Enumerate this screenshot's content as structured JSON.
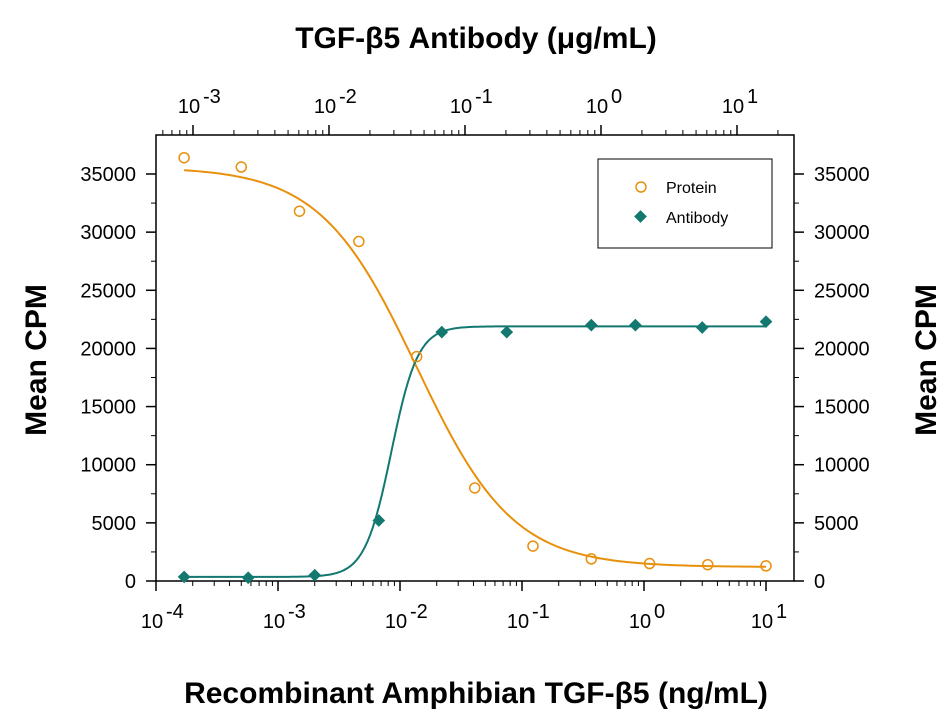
{
  "chart_data": {
    "type": "scatter",
    "title_top": "TGF-β5 Antibody (μg/mL)",
    "xlabel": "Recombinant Amphibian TGF-β5 (ng/mL)",
    "ylabel_left": "Mean CPM",
    "ylabel_right": "Mean CPM",
    "x_scale": "log",
    "x_bottom_ticks": [
      {
        "base": "10",
        "exp": "-4",
        "value": 0.0001
      },
      {
        "base": "10",
        "exp": "-3",
        "value": 0.001
      },
      {
        "base": "10",
        "exp": "-2",
        "value": 0.01
      },
      {
        "base": "10",
        "exp": "-1",
        "value": 0.1
      },
      {
        "base": "10",
        "exp": "0",
        "value": 1
      },
      {
        "base": "10",
        "exp": "1",
        "value": 10
      }
    ],
    "x_top_ticks": [
      {
        "base": "10",
        "exp": "-3",
        "value": 0.001
      },
      {
        "base": "10",
        "exp": "-2",
        "value": 0.01
      },
      {
        "base": "10",
        "exp": "-1",
        "value": 0.1
      },
      {
        "base": "10",
        "exp": "0",
        "value": 1
      },
      {
        "base": "10",
        "exp": "1",
        "value": 10
      }
    ],
    "y_ticks": [
      0,
      5000,
      10000,
      15000,
      20000,
      25000,
      30000,
      35000
    ],
    "ylim": [
      0,
      38000
    ],
    "legend_position": "top-right",
    "series": [
      {
        "name": "Protein",
        "color": "#E8900C",
        "marker": "open-circle",
        "points": [
          {
            "x": 0.00017,
            "y": 36400
          },
          {
            "x": 0.0005,
            "y": 35600
          },
          {
            "x": 0.0015,
            "y": 31800
          },
          {
            "x": 0.0046,
            "y": 29200
          },
          {
            "x": 0.0137,
            "y": 19300
          },
          {
            "x": 0.041,
            "y": 8000
          },
          {
            "x": 0.123,
            "y": 3000
          },
          {
            "x": 0.37,
            "y": 1900
          },
          {
            "x": 1.11,
            "y": 1500
          },
          {
            "x": 3.33,
            "y": 1400
          },
          {
            "x": 10.0,
            "y": 1300
          }
        ],
        "fit": {
          "bottom": 1200,
          "top": 35600,
          "ec50": 0.0137,
          "hill": 1.1
        }
      },
      {
        "name": "Antibody",
        "color": "#127870",
        "marker": "filled-diamond",
        "points": [
          {
            "x": 0.00017,
            "y": 350
          },
          {
            "x": 0.00057,
            "y": 280
          },
          {
            "x": 0.002,
            "y": 500
          },
          {
            "x": 0.0067,
            "y": 5200
          },
          {
            "x": 0.022,
            "y": 21400
          },
          {
            "x": 0.075,
            "y": 21400
          },
          {
            "x": 0.37,
            "y": 22000
          },
          {
            "x": 0.85,
            "y": 22000
          },
          {
            "x": 3.0,
            "y": 21800
          },
          {
            "x": 10.0,
            "y": 22300
          }
        ],
        "fit": {
          "bottom": 350,
          "top": 21900,
          "ec50": 0.0085,
          "hill": 4.0
        }
      }
    ]
  }
}
